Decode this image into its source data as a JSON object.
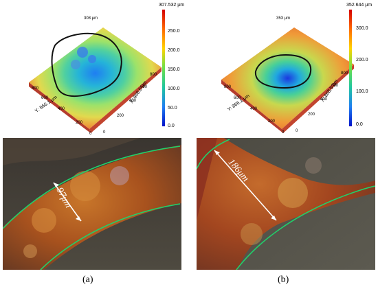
{
  "panel_a": {
    "top_value": "307.532 μm",
    "peak_label": "308 μm",
    "scale_ticks": [
      "250.0",
      "200.0",
      "150.0",
      "100.0",
      "50.0",
      "0.0"
    ],
    "axis_y": "Y: 866.1 μm",
    "axis_x": "X: 868.5 μm",
    "y_ticks": [
      "800",
      "600",
      "400",
      "200",
      "0"
    ],
    "x_ticks": [
      "800",
      "600",
      "400",
      "200",
      "0"
    ],
    "measure": "97μm",
    "caption": "(a)"
  },
  "panel_b": {
    "top_value": "352.644 μm",
    "peak_label": "353 μm",
    "scale_ticks": [
      "300.0",
      "200.0",
      "100.0",
      "0.0"
    ],
    "axis_y": "Y: 866.1 μm",
    "axis_x": "X: 868.5 μm",
    "y_ticks": [
      "800",
      "600",
      "400",
      "200",
      "0"
    ],
    "x_ticks": [
      "800",
      "600",
      "400",
      "200",
      "0"
    ],
    "measure": "186μm",
    "caption": "(b)"
  },
  "colors": {
    "contour": "#111111",
    "boundary": "#21d06b",
    "scale_top": "#d40000",
    "scale_bottom": "#0010c8"
  }
}
